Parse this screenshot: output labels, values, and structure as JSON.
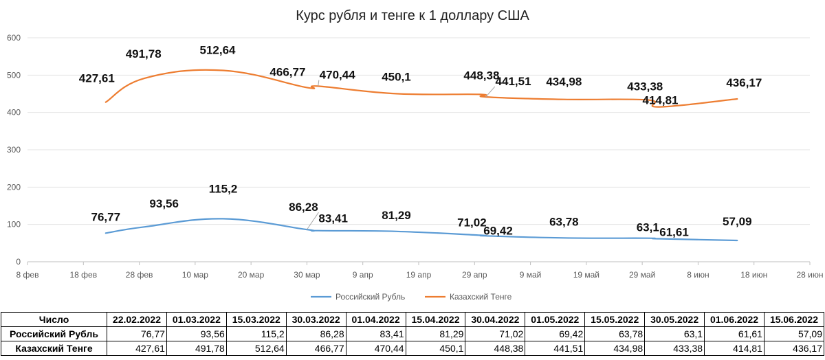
{
  "chart_data": {
    "type": "line",
    "title": "Курс рубля и тенге к 1 доллару США",
    "x_dates": [
      "2022-02-22",
      "2022-03-01",
      "2022-03-15",
      "2022-03-30",
      "2022-04-01",
      "2022-04-15",
      "2022-04-30",
      "2022-05-01",
      "2022-05-15",
      "2022-05-30",
      "2022-06-01",
      "2022-06-15"
    ],
    "x_tick_labels": [
      "8 фев",
      "18 фев",
      "28 фев",
      "10 мар",
      "20 мар",
      "30 мар",
      "9 апр",
      "19 апр",
      "29 апр",
      "9 май",
      "19 май",
      "29 май",
      "8 июн",
      "18 июн",
      "28 июн"
    ],
    "x_tick_dates": [
      "2022-02-08",
      "2022-02-18",
      "2022-02-28",
      "2022-03-10",
      "2022-03-20",
      "2022-03-30",
      "2022-04-09",
      "2022-04-19",
      "2022-04-29",
      "2022-05-09",
      "2022-05-19",
      "2022-05-29",
      "2022-06-08",
      "2022-06-18",
      "2022-06-28"
    ],
    "y_ticks": [
      0,
      100,
      200,
      300,
      400,
      500,
      600
    ],
    "ylim": [
      0,
      600
    ],
    "xlim": [
      "2022-02-08",
      "2022-06-28"
    ],
    "grid": true,
    "legend_position": "bottom",
    "series": [
      {
        "name": "Российский Рубль",
        "color": "#5B9BD5",
        "values": [
          76.77,
          93.56,
          115.2,
          86.28,
          83.41,
          81.29,
          71.02,
          69.42,
          63.78,
          63.1,
          61.61,
          57.09
        ],
        "labels": [
          "76,77",
          "93,56",
          "115,2",
          "86,28",
          "83,41",
          "81,29",
          "71,02",
          "69,42",
          "63,78",
          "63,1",
          "61,61",
          "57,09"
        ]
      },
      {
        "name": "Казахский Тенге",
        "color": "#ED7D31",
        "values": [
          427.61,
          491.78,
          512.64,
          466.77,
          470.44,
          450.1,
          448.38,
          441.51,
          434.98,
          433.38,
          414.81,
          436.17
        ],
        "labels": [
          "427,61",
          "491,78",
          "512,64",
          "466,77",
          "470,44",
          "450,1",
          "448,38",
          "441,51",
          "434,98",
          "433,38",
          "414,81",
          "436,17"
        ]
      }
    ]
  },
  "table": {
    "corner": "Число",
    "headers": [
      "22.02.2022",
      "01.03.2022",
      "15.03.2022",
      "30.03.2022",
      "01.04.2022",
      "15.04.2022",
      "30.04.2022",
      "01.05.2022",
      "15.05.2022",
      "30.05.2022",
      "01.06.2022",
      "15.06.2022"
    ],
    "rows": [
      {
        "label": "Российский Рубль",
        "cells": [
          "76,77",
          "93,56",
          "115,2",
          "86,28",
          "83,41",
          "81,29",
          "71,02",
          "69,42",
          "63,78",
          "63,1",
          "61,61",
          "57,09"
        ]
      },
      {
        "label": "Казахский Тенге",
        "cells": [
          "427,61",
          "491,78",
          "512,64",
          "466,77",
          "470,44",
          "450,1",
          "448,38",
          "441,51",
          "434,98",
          "433,38",
          "414,81",
          "436,17"
        ]
      }
    ]
  }
}
